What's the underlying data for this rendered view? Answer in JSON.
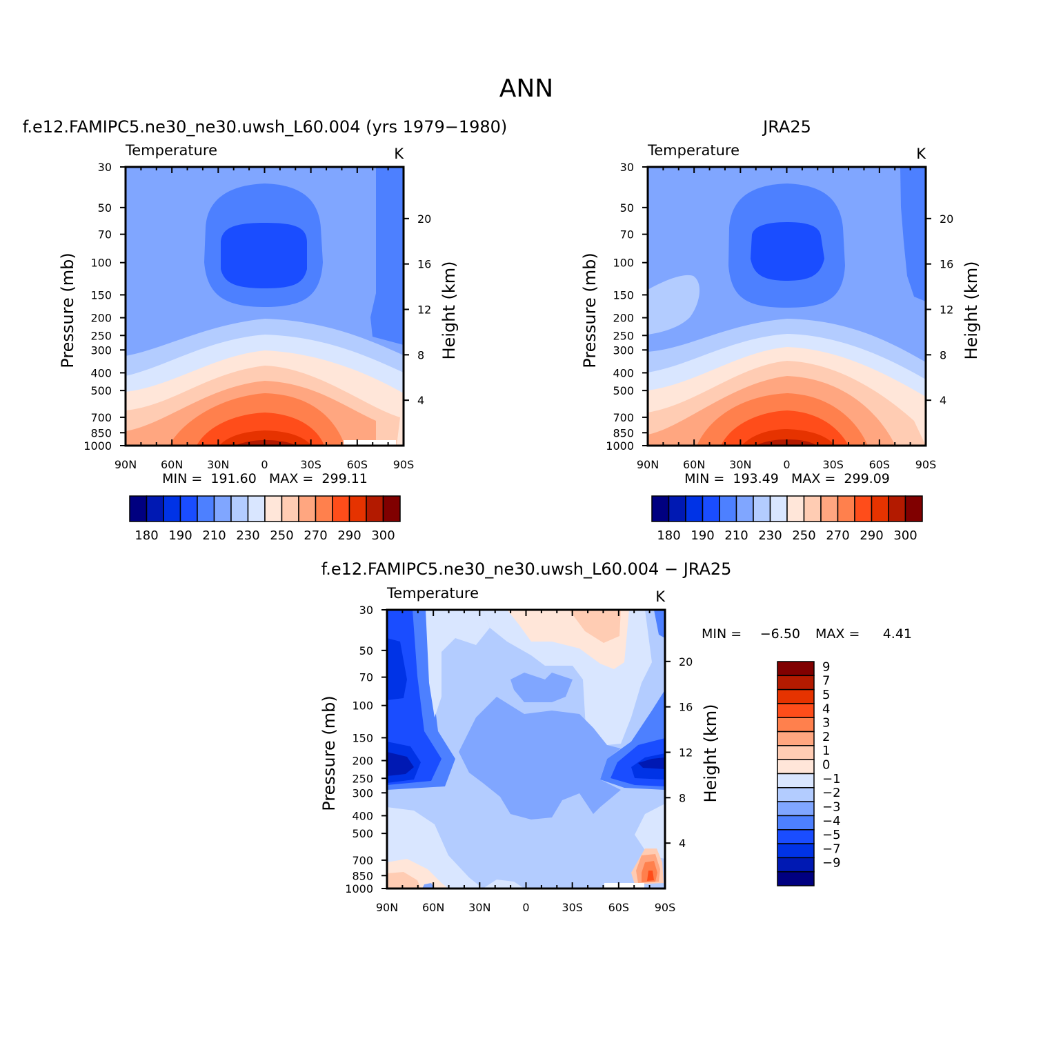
{
  "figure_title": "ANN",
  "colors": {
    "abs": [
      "#000080",
      "#0019b3",
      "#0033e6",
      "#1a4dff",
      "#4d80ff",
      "#80a6ff",
      "#b3ccff",
      "#d9e6ff",
      "#ffe6d9",
      "#ffccb3",
      "#ffa680",
      "#ff804d",
      "#ff4d1a",
      "#e63300",
      "#b31a00",
      "#800000"
    ],
    "diff": [
      "#000080",
      "#0019b3",
      "#0033e6",
      "#1a4dff",
      "#4d80ff",
      "#80a6ff",
      "#b3ccff",
      "#d9e6ff",
      "#ffe6d9",
      "#ffccb3",
      "#ffa680",
      "#ff804d",
      "#ff4d1a",
      "#e63300",
      "#b31a00",
      "#800000"
    ]
  },
  "chart_data": [
    {
      "id": "model",
      "type": "contour",
      "title": "f.e12.FAMIPC5.ne30_ne30.uwsh_L60.004 (yrs 1979−1980)",
      "left_label": "Temperature",
      "right_label": "K",
      "ylabel": "Pressure (mb)",
      "y2label": "Height (km)",
      "x_ticks": [
        "90N",
        "60N",
        "30N",
        "0",
        "30S",
        "60S",
        "90S"
      ],
      "x_values": [
        90,
        60,
        30,
        0,
        -30,
        -60,
        -90
      ],
      "p_ticks": [
        30,
        50,
        70,
        100,
        150,
        200,
        250,
        300,
        400,
        500,
        700,
        850,
        1000
      ],
      "p_range": [
        30,
        1000
      ],
      "height_ticks": [
        4,
        8,
        12,
        16,
        20
      ],
      "stats": "MIN =  191.60   MAX =  299.11",
      "min": 191.6,
      "max": 299.11,
      "levels": [
        180,
        185,
        190,
        200,
        210,
        220,
        230,
        240,
        250,
        260,
        270,
        280,
        290,
        295,
        300
      ],
      "colorbar_labels": [
        "180",
        "190",
        "210",
        "230",
        "250",
        "270",
        "290",
        "300"
      ]
    },
    {
      "id": "obs",
      "type": "contour",
      "title": "JRA25",
      "left_label": "Temperature",
      "right_label": "K",
      "ylabel": "Pressure (mb)",
      "y2label": "Height (km)",
      "x_ticks": [
        "90N",
        "60N",
        "30N",
        "0",
        "30S",
        "60S",
        "90S"
      ],
      "x_values": [
        90,
        60,
        30,
        0,
        -30,
        -60,
        -90
      ],
      "p_ticks": [
        30,
        50,
        70,
        100,
        150,
        200,
        250,
        300,
        400,
        500,
        700,
        850,
        1000
      ],
      "p_range": [
        30,
        1000
      ],
      "height_ticks": [
        4,
        8,
        12,
        16,
        20
      ],
      "stats": "MIN =  193.49   MAX =  299.09",
      "min": 193.49,
      "max": 299.09,
      "levels": [
        180,
        185,
        190,
        200,
        210,
        220,
        230,
        240,
        250,
        260,
        270,
        280,
        290,
        295,
        300
      ],
      "colorbar_labels": [
        "180",
        "190",
        "210",
        "230",
        "250",
        "270",
        "290",
        "300"
      ]
    },
    {
      "id": "diff",
      "type": "contour",
      "title": "f.e12.FAMIPC5.ne30_ne30.uwsh_L60.004 − JRA25",
      "left_label": "Temperature",
      "right_label": "K",
      "ylabel": "Pressure (mb)",
      "y2label": "Height (km)",
      "x_ticks": [
        "90N",
        "60N",
        "30N",
        "0",
        "30S",
        "60S",
        "90S"
      ],
      "x_values": [
        90,
        60,
        30,
        0,
        -30,
        -60,
        -90
      ],
      "p_ticks": [
        30,
        50,
        70,
        100,
        150,
        200,
        250,
        300,
        400,
        500,
        700,
        850,
        1000
      ],
      "p_range": [
        30,
        1000
      ],
      "height_ticks": [
        4,
        8,
        12,
        16,
        20
      ],
      "stats_min_label": "MIN =",
      "stats_min": "−6.50",
      "stats_max_label": "MAX =",
      "stats_max": "4.41",
      "min": -6.5,
      "max": 4.41,
      "levels": [
        -9,
        -7,
        -5,
        -4,
        -3,
        -2,
        -1,
        0,
        1,
        2,
        3,
        4,
        5,
        7,
        9
      ],
      "colorbar_labels": [
        "9",
        "7",
        "5",
        "4",
        "3",
        "2",
        "1",
        "0",
        "−1",
        "−2",
        "−3",
        "−4",
        "−5",
        "−7",
        "−9"
      ]
    }
  ]
}
